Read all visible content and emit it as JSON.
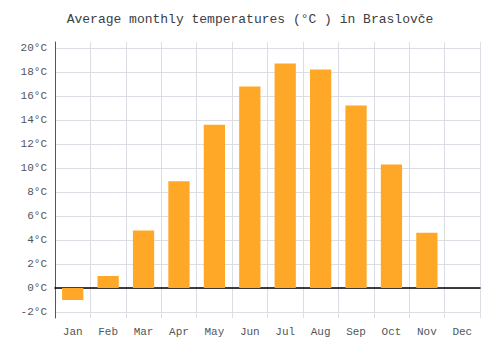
{
  "chart_data": {
    "type": "bar",
    "title": "Average monthly temperatures (°C ) in Braslovče",
    "categories": [
      "Jan",
      "Feb",
      "Mar",
      "Apr",
      "May",
      "Jun",
      "Jul",
      "Aug",
      "Sep",
      "Oct",
      "Nov",
      "Dec"
    ],
    "values": [
      -1.0,
      1.0,
      4.8,
      8.9,
      13.6,
      16.8,
      18.7,
      18.2,
      15.2,
      10.3,
      4.6,
      0.0
    ],
    "color": "#FFA726",
    "ylim": [
      -2.5,
      20.5
    ],
    "yticks": [
      {
        "value": -2,
        "label": "-2°C"
      },
      {
        "value": 0,
        "label": "0°C"
      },
      {
        "value": 2,
        "label": "2°C"
      },
      {
        "value": 4,
        "label": "4°C"
      },
      {
        "value": 6,
        "label": "6°C"
      },
      {
        "value": 8,
        "label": "8°C"
      },
      {
        "value": 10,
        "label": "10°C"
      },
      {
        "value": 12,
        "label": "12°C"
      },
      {
        "value": 14,
        "label": "14°C"
      },
      {
        "value": 16,
        "label": "16°C"
      },
      {
        "value": 18,
        "label": "18°C"
      },
      {
        "value": 20,
        "label": "20°C"
      }
    ],
    "grid": true
  }
}
